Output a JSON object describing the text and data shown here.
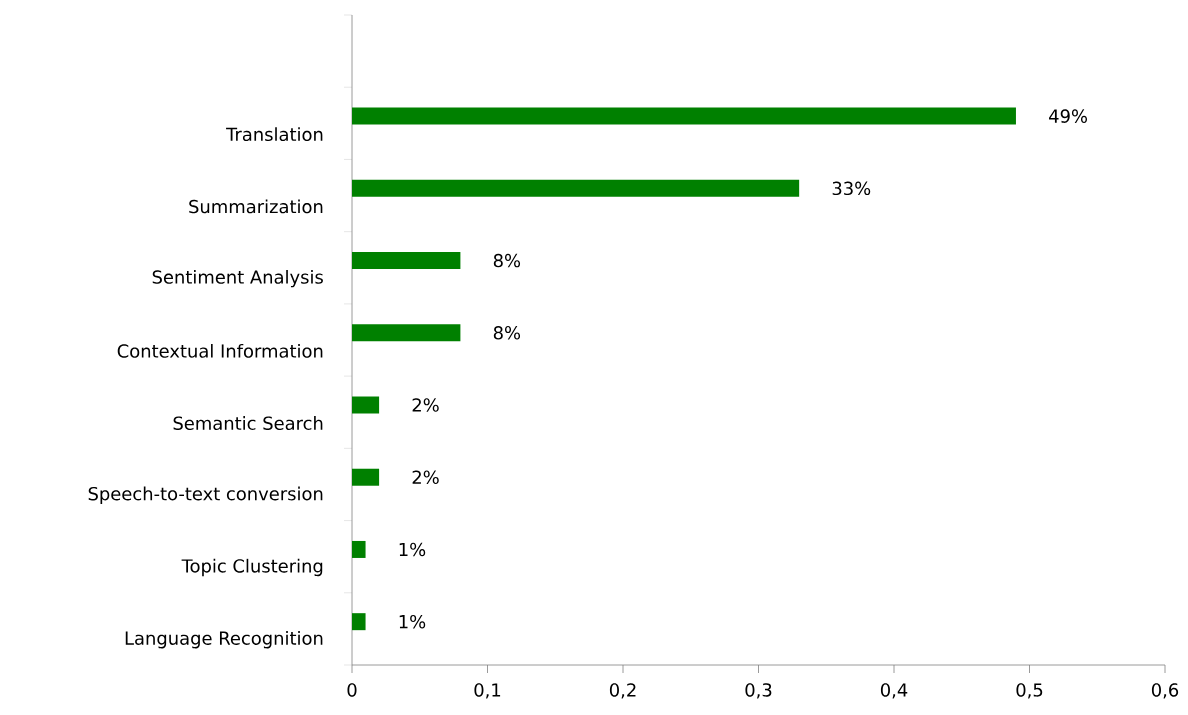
{
  "chart_data": {
    "type": "bar",
    "orientation": "horizontal",
    "categories": [
      null,
      "Translation",
      "Summarization",
      "Sentiment Analysis",
      "Contextual Information",
      "Semantic Search",
      "Speech-to-text conversion",
      "Topic Clustering",
      "Language Recognition"
    ],
    "values": [
      null,
      0.49,
      0.33,
      0.08,
      0.08,
      0.02,
      0.02,
      0.01,
      0.01
    ],
    "value_labels": [
      null,
      "49%",
      "33%",
      "8%",
      "8%",
      "2%",
      "2%",
      "1%",
      "1%"
    ],
    "color": "#008000",
    "xlim": [
      0,
      0.6
    ],
    "xticks": [
      0,
      {
        "value": 0.1,
        "label": "0,1"
      },
      {
        "value": 0.2,
        "label": "0,2"
      },
      {
        "value": 0.3,
        "label": "0,3"
      },
      {
        "value": 0.4,
        "label": "0,4"
      },
      {
        "value": 0.5,
        "label": "0,5"
      },
      {
        "value": 0.6,
        "label": "0,6"
      }
    ],
    "grid": false
  }
}
